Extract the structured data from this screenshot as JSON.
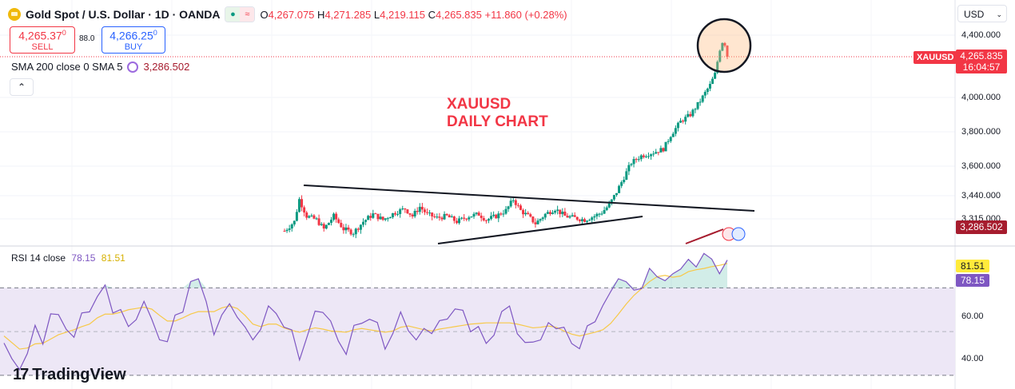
{
  "header": {
    "title": "Gold Spot / U.S. Dollar · 1D · OANDA",
    "ohlc": {
      "o_label": "O",
      "o": "4,267.075",
      "h_label": "H",
      "h": "4,271.285",
      "l_label": "L",
      "l": "4,219.115",
      "c_label": "C",
      "c": "4,265.835",
      "change": "+11.860 (+0.28%)"
    },
    "sell_price": "4,265.37",
    "sell_price_sup": "0",
    "sell_label": "SELL",
    "spread": "88.0",
    "buy_price": "4,266.25",
    "buy_price_sup": "0",
    "buy_label": "BUY",
    "sma_label": "SMA 200 close 0 SMA 5",
    "sma_value": "3,286.502",
    "currency": "USD",
    "collapse_glyph": "⌃"
  },
  "annotation": {
    "line1": "XAUUSD",
    "line2": "DAILY CHART"
  },
  "price_axis": {
    "ticks": [
      {
        "label": "4,400.000",
        "value": 4400
      },
      {
        "label": "4,000.000",
        "value": 4000
      },
      {
        "label": "3,800.000",
        "value": 3800
      },
      {
        "label": "3,600.000",
        "value": 3600
      },
      {
        "label": "3,440.000",
        "value": 3440
      },
      {
        "label": "3,315.000",
        "value": 3315
      }
    ],
    "last_symbol": "XAUUSD",
    "last_price": "4,265.835",
    "countdown": "16:04:57",
    "sma_tag": "3,286.502"
  },
  "rsi": {
    "label": "RSI 14 close",
    "rsi_value": "78.15",
    "ma_value": "81.51",
    "ticks": [
      {
        "label": "60.00",
        "value": 60
      },
      {
        "label": "40.00",
        "value": 40
      }
    ]
  },
  "brand": {
    "name": "TradingView",
    "mark": "17"
  },
  "colors": {
    "up": "#089981",
    "down": "#f23645",
    "rsi": "#7e57c2",
    "rsi_ma": "#f7c948",
    "band": "#ede7f6",
    "accent": "#2962ff"
  },
  "chart_data": {
    "type": "candlestick",
    "symbol": "XAUUSD",
    "interval": "1D",
    "ylim": [
      3230,
      4450
    ],
    "last_close": 4265.835,
    "sma200_last": 3286.502,
    "close_path": [
      [
        0,
        3250
      ],
      [
        8,
        3300
      ],
      [
        12,
        3420
      ],
      [
        18,
        3330
      ],
      [
        26,
        3310
      ],
      [
        32,
        3260
      ],
      [
        40,
        3330
      ],
      [
        48,
        3260
      ],
      [
        56,
        3240
      ],
      [
        64,
        3300
      ],
      [
        72,
        3340
      ],
      [
        80,
        3310
      ],
      [
        90,
        3350
      ],
      [
        98,
        3370
      ],
      [
        104,
        3330
      ],
      [
        110,
        3380
      ],
      [
        116,
        3340
      ],
      [
        124,
        3320
      ],
      [
        132,
        3330
      ],
      [
        140,
        3300
      ],
      [
        150,
        3330
      ],
      [
        158,
        3340
      ],
      [
        164,
        3310
      ],
      [
        172,
        3330
      ],
      [
        180,
        3360
      ],
      [
        186,
        3420
      ],
      [
        192,
        3360
      ],
      [
        198,
        3330
      ],
      [
        204,
        3290
      ],
      [
        212,
        3340
      ],
      [
        220,
        3370
      ],
      [
        228,
        3330
      ],
      [
        236,
        3320
      ],
      [
        244,
        3310
      ],
      [
        252,
        3330
      ],
      [
        258,
        3350
      ],
      [
        264,
        3390
      ],
      [
        270,
        3460
      ],
      [
        276,
        3540
      ],
      [
        282,
        3620
      ],
      [
        290,
        3660
      ],
      [
        300,
        3680
      ],
      [
        308,
        3700
      ],
      [
        314,
        3780
      ],
      [
        322,
        3860
      ],
      [
        330,
        3900
      ],
      [
        338,
        3980
      ],
      [
        346,
        4080
      ],
      [
        350,
        4150
      ],
      [
        354,
        4310
      ],
      [
        357,
        4380
      ],
      [
        360,
        4266
      ]
    ],
    "rsi_series": [
      48,
      42,
      36,
      44,
      52,
      46,
      58,
      62,
      50,
      44,
      54,
      60,
      66,
      70,
      62,
      56,
      52,
      58,
      64,
      60,
      50,
      44,
      56,
      62,
      70,
      72,
      60,
      50,
      56,
      62,
      54,
      48,
      44,
      52,
      58,
      56,
      50,
      46,
      42,
      52,
      58,
      54,
      50,
      48,
      44,
      50,
      56,
      54,
      50,
      46,
      52,
      56,
      54,
      50,
      48,
      46,
      52,
      56,
      60,
      58,
      54,
      50,
      48,
      52,
      56,
      60,
      54,
      48,
      44,
      50,
      56,
      52,
      48,
      44,
      42,
      50,
      56,
      64,
      72,
      78,
      76,
      70,
      72,
      78,
      80,
      76,
      72,
      80,
      84,
      78,
      82,
      86,
      80,
      78
    ],
    "rsi_levels": [
      70,
      30
    ]
  }
}
